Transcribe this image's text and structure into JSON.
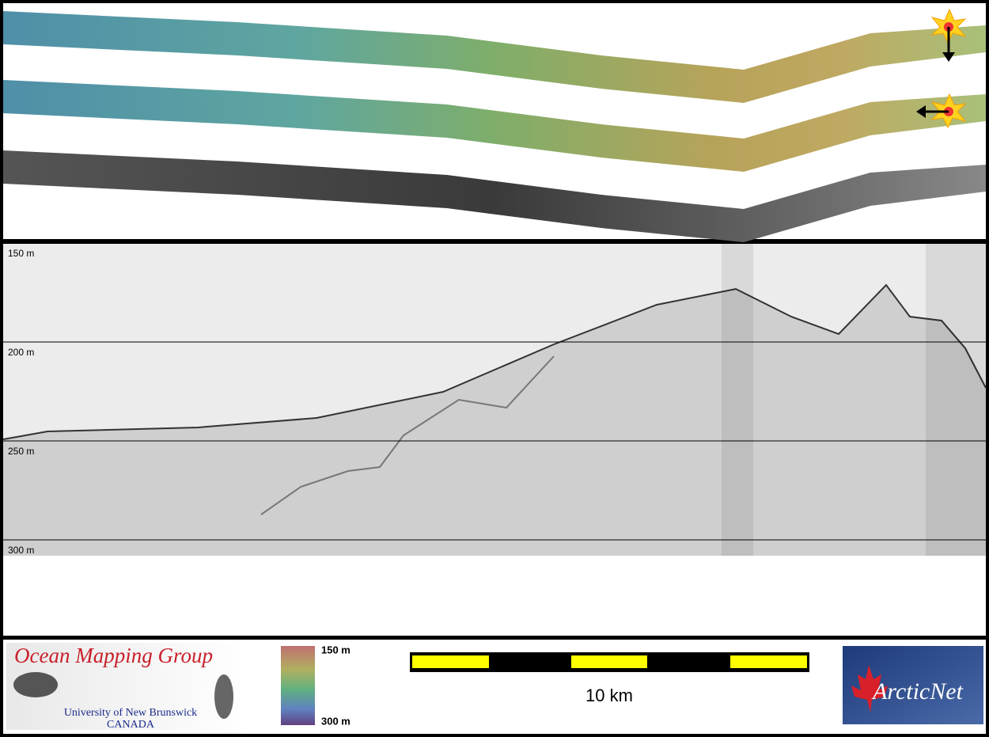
{
  "profile": {
    "depth_labels": [
      "150 m",
      "200 m",
      "250 m",
      "300 m"
    ]
  },
  "footer": {
    "logo": {
      "title": "Ocean Mapping Group",
      "university": "University of New Brunswick",
      "country": "CANADA"
    },
    "colorbar": {
      "top_label": "150 m",
      "bottom_label": "300 m"
    },
    "scale_bar": {
      "label": "10 km"
    },
    "partner_logo": {
      "label": "ArcticNet"
    }
  }
}
